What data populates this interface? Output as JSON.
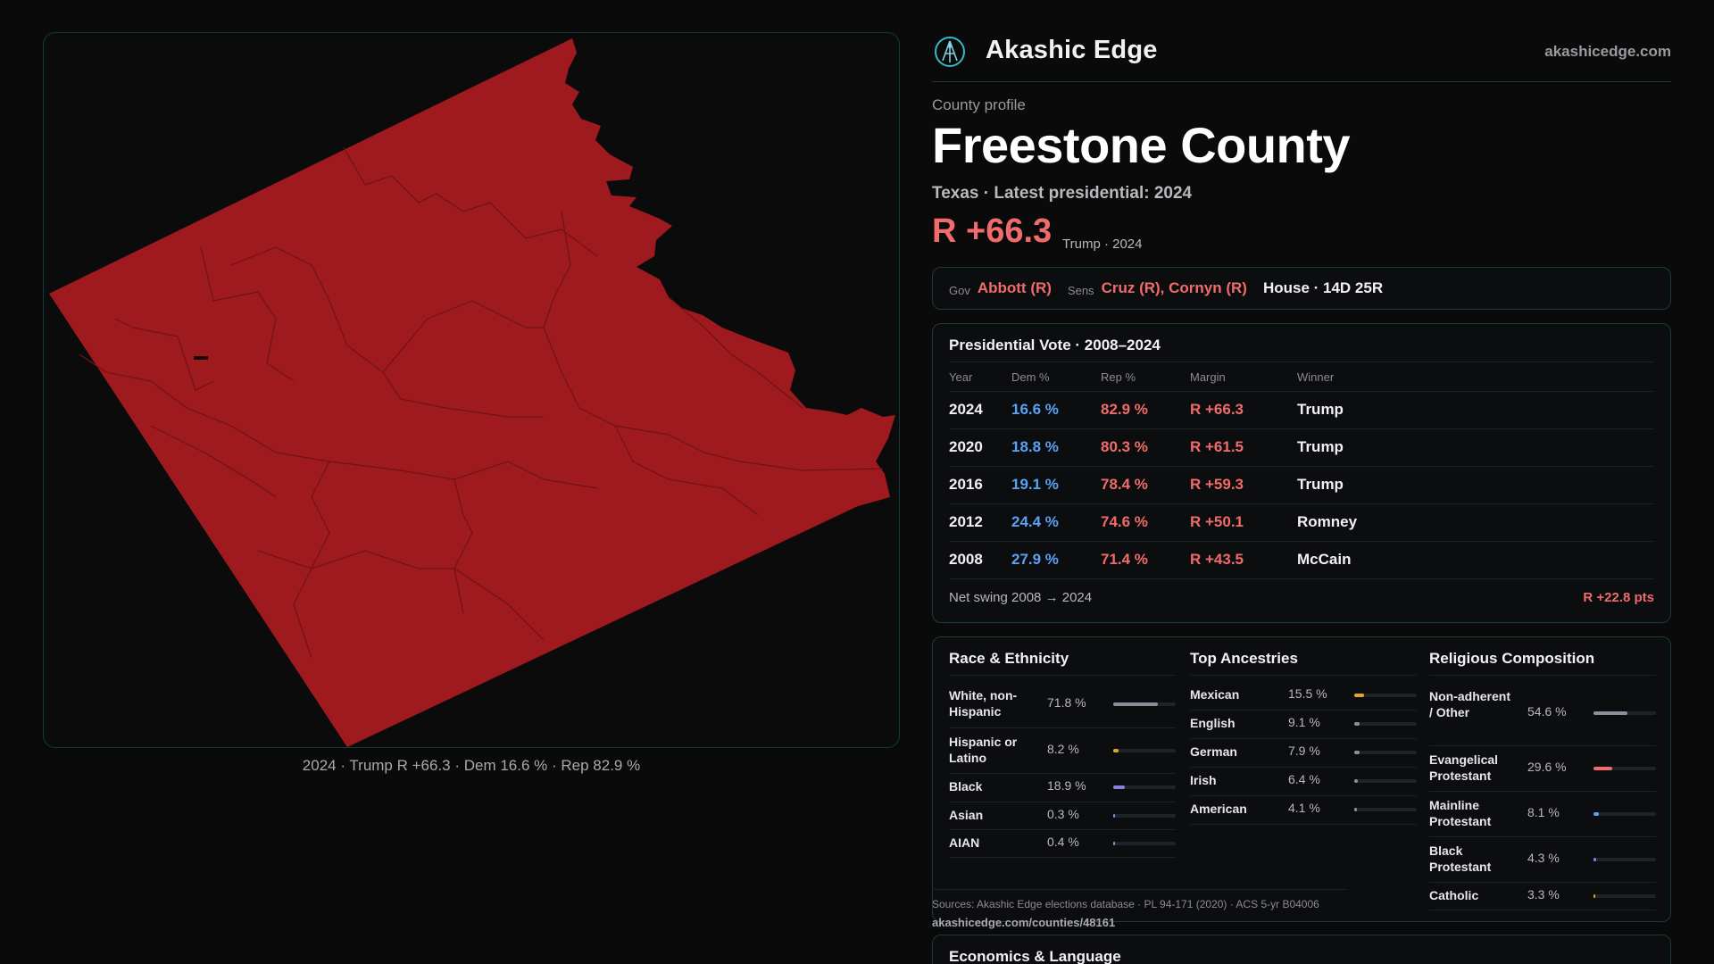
{
  "colors": {
    "background": "#0a0a0b",
    "republican": "#f06b6b",
    "democrat": "#5aa2f5",
    "county_fill": "#9e1a1f",
    "accent_border": "#1d3a3e"
  },
  "map": {
    "caption": "2024 · Trump R +66.3 · Dem 16.6 % · Rep 82.9 %"
  },
  "brand": {
    "logo_icon": "akashic-edge-logo-icon",
    "name": "Akashic Edge",
    "url": "akashicedge.com"
  },
  "profile": {
    "kicker": "County profile",
    "title": "Freestone County",
    "subtitle": "Texas · Latest presidential: 2024",
    "margin": "R +66.3",
    "margin_note": "Trump · 2024"
  },
  "officials": {
    "gov_label": "Gov",
    "gov_value": "Abbott (R)",
    "sens_label": "Sens",
    "sens_value": "Cruz (R), Cornyn (R)",
    "house": "House · 14D 25R"
  },
  "presidential": {
    "title": "Presidential Vote · 2008–2024",
    "headers": [
      "Year",
      "Dem %",
      "Rep %",
      "Margin",
      "Winner"
    ],
    "rows": [
      {
        "year": "2024",
        "dem": "16.6 %",
        "rep": "82.9 %",
        "margin": "R +66.3",
        "winner": "Trump"
      },
      {
        "year": "2020",
        "dem": "18.8 %",
        "rep": "80.3 %",
        "margin": "R +61.5",
        "winner": "Trump"
      },
      {
        "year": "2016",
        "dem": "19.1 %",
        "rep": "78.4 %",
        "margin": "R +59.3",
        "winner": "Trump"
      },
      {
        "year": "2012",
        "dem": "24.4 %",
        "rep": "74.6 %",
        "margin": "R +50.1",
        "winner": "Romney"
      },
      {
        "year": "2008",
        "dem": "27.9 %",
        "rep": "71.4 %",
        "margin": "R +43.5",
        "winner": "McCain"
      }
    ],
    "swing_label": "Net swing 2008 → 2024",
    "swing_value": "R +22.8 pts"
  },
  "race": {
    "title": "Race & Ethnicity",
    "items": [
      {
        "label": "White, non-Hispanic",
        "value": "71.8 %",
        "pct": 71.8,
        "color": "#8a8f9c"
      },
      {
        "label": "Hispanic or Latino",
        "value": "8.2 %",
        "pct": 8.2,
        "color": "#e0a526"
      },
      {
        "label": "Black",
        "value": "18.9 %",
        "pct": 18.9,
        "color": "#8b7ee0"
      },
      {
        "label": "Asian",
        "value": "0.3 %",
        "pct": 0.3,
        "color": "#5aa2f5"
      },
      {
        "label": "AIAN",
        "value": "0.4 %",
        "pct": 0.4,
        "color": "#5aa2f5"
      }
    ]
  },
  "ancestry": {
    "title": "Top Ancestries",
    "items": [
      {
        "label": "Mexican",
        "value": "15.5 %",
        "pct": 15.5,
        "color": "#e0a526"
      },
      {
        "label": "English",
        "value": "9.1 %",
        "pct": 9.1,
        "color": "#8a8f9c"
      },
      {
        "label": "German",
        "value": "7.9 %",
        "pct": 7.9,
        "color": "#8a8f9c"
      },
      {
        "label": "Irish",
        "value": "6.4 %",
        "pct": 6.4,
        "color": "#8a8f9c"
      },
      {
        "label": "American",
        "value": "4.1 %",
        "pct": 4.1,
        "color": "#8a8f9c"
      }
    ]
  },
  "religion": {
    "title": "Religious Composition",
    "items": [
      {
        "label": "Non-adherent / Other",
        "value": "54.6 %",
        "pct": 54.6,
        "color": "#8a8f9c"
      },
      {
        "label": "Evangelical Protestant",
        "value": "29.6 %",
        "pct": 29.6,
        "color": "#f06b6b"
      },
      {
        "label": "Mainline Protestant",
        "value": "8.1 %",
        "pct": 8.1,
        "color": "#5aa2f5"
      },
      {
        "label": "Black Protestant",
        "value": "4.3 %",
        "pct": 4.3,
        "color": "#8b7ee0"
      },
      {
        "label": "Catholic",
        "value": "3.3 %",
        "pct": 3.3,
        "color": "#e0a526"
      }
    ]
  },
  "sources": {
    "text": "Sources: Akashic Edge elections database · PL 94-171 (2020) · ACS 5-yr B04006",
    "url": "akashicedge.com/counties/48161"
  },
  "economics": {
    "title": "Economics & Language"
  }
}
